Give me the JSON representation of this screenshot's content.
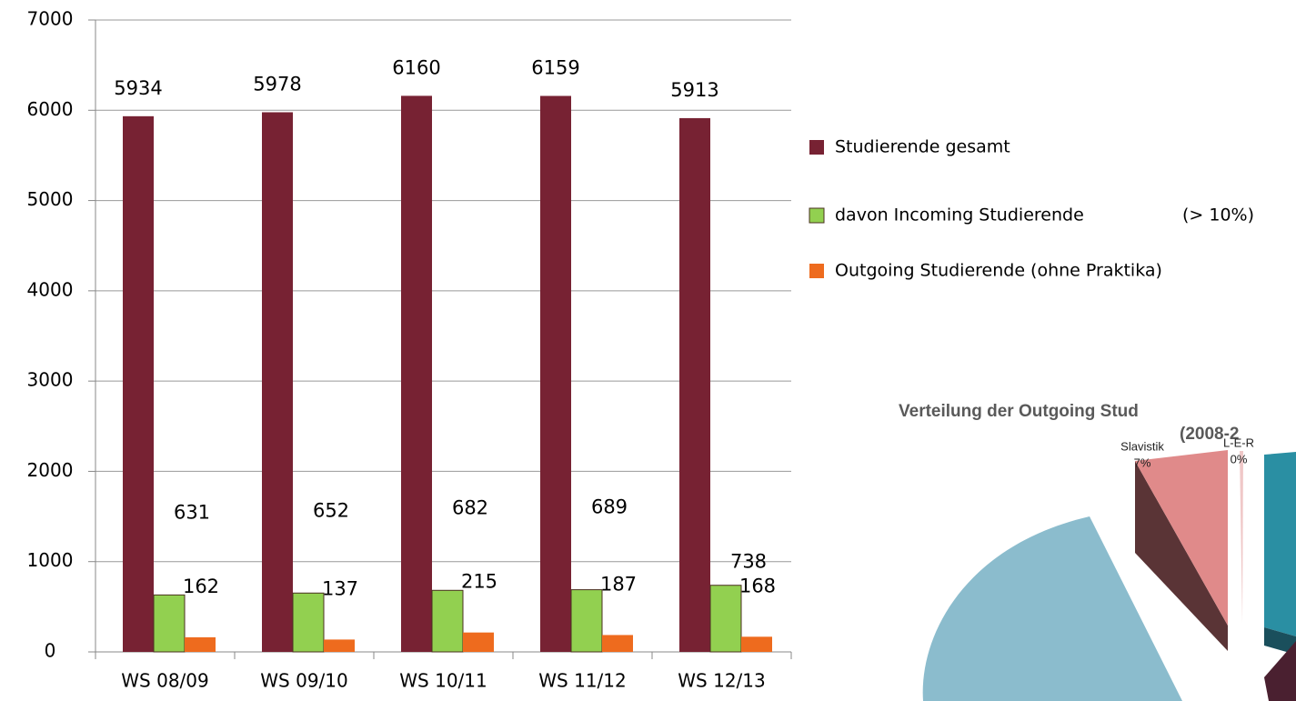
{
  "chart_data": [
    {
      "type": "bar",
      "categories": [
        "WS 08/09",
        "WS 09/10",
        "WS 10/11",
        "WS 11/12",
        "WS 12/13"
      ],
      "series": [
        {
          "name": "Studierende gesamt",
          "color": "#772233",
          "values": [
            5934,
            5978,
            6160,
            6159,
            5913
          ]
        },
        {
          "name": "davon Incoming Studierende",
          "color": "#92d050",
          "values": [
            631,
            652,
            682,
            689,
            738
          ]
        },
        {
          "name": "Outgoing Studierende (ohne Praktika)",
          "color": "#ee6b1e",
          "values": [
            162,
            137,
            215,
            187,
            168
          ]
        }
      ],
      "annotation": "(> 10%)",
      "ylim": [
        0,
        7000
      ],
      "yticks": [
        0,
        1000,
        2000,
        3000,
        4000,
        5000,
        6000,
        7000
      ],
      "grid": true,
      "legend": "right"
    },
    {
      "type": "pie",
      "title": "Verteilung der Outgoing Stud",
      "subtitle": "(2008-2",
      "categories": [
        "Slavistik",
        "L-E-R"
      ],
      "values": [
        7,
        0
      ],
      "value_labels": [
        "7%",
        "0%"
      ],
      "colors": [
        "#e08a8a",
        "#f0c8c8"
      ]
    }
  ]
}
